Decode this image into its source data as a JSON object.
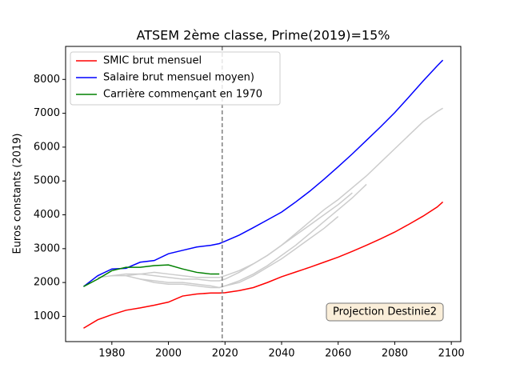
{
  "chart_data": {
    "type": "line",
    "title": "ATSEM 2ème classe, Prime(2019)=15%",
    "y_label": "Euros constants (2019)",
    "annotation": "Projection Destinie2",
    "vline": 2019,
    "legend": "upper left",
    "x": [
      1970,
      1975,
      1980,
      1985,
      1990,
      1995,
      2000,
      2005,
      2010,
      2015,
      2018,
      2020,
      2025,
      2030,
      2035,
      2040,
      2045,
      2050,
      2055,
      2060,
      2065,
      2070,
      2075,
      2080,
      2085,
      2090,
      2095,
      2097
    ],
    "series": [
      {
        "name": "SMIC brut mensuel",
        "color": "#ff0000",
        "values": [
          650,
          900,
          1050,
          1180,
          1250,
          1330,
          1420,
          1600,
          1660,
          1690,
          1690,
          1700,
          1760,
          1850,
          2000,
          2170,
          2310,
          2450,
          2600,
          2750,
          2920,
          3100,
          3290,
          3490,
          3720,
          3960,
          4230,
          4380
        ]
      },
      {
        "name": "Salaire brut mensuel moyen)",
        "color": "#0000ff",
        "values": [
          1880,
          2200,
          2400,
          2420,
          2600,
          2650,
          2850,
          2950,
          3050,
          3100,
          3150,
          3220,
          3400,
          3620,
          3850,
          4080,
          4380,
          4700,
          5050,
          5420,
          5800,
          6200,
          6600,
          7020,
          7480,
          7950,
          8400,
          8570
        ]
      },
      {
        "name": "Carrière commençant en 1970",
        "color": "#008000",
        "values": [
          1880,
          2100,
          2350,
          2450,
          2450,
          2500,
          2520,
          2400,
          2300,
          2250,
          2250,
          null,
          null,
          null,
          null,
          null,
          null,
          null,
          null,
          null,
          null,
          null,
          null,
          null,
          null,
          null,
          null,
          null
        ]
      },
      {
        "color": "#cccccc",
        "values": [
          null,
          null,
          2200,
          2250,
          2250,
          2300,
          2250,
          2200,
          2150,
          2150,
          2150,
          2200,
          2350,
          2550,
          2800,
          3100,
          3450,
          3800,
          4150,
          4450,
          4800,
          5150,
          5550,
          5950,
          6350,
          6750,
          7050,
          7150
        ]
      },
      {
        "color": "#cccccc",
        "values": [
          null,
          null,
          null,
          2200,
          2100,
          2050,
          2000,
          2000,
          1950,
          1900,
          1850,
          1900,
          2050,
          2250,
          2500,
          2800,
          3100,
          3450,
          3800,
          4150,
          4500,
          4900,
          null,
          null,
          null,
          null,
          null,
          null
        ]
      },
      {
        "color": "#cccccc",
        "values": [
          null,
          null,
          null,
          null,
          2100,
          2000,
          1950,
          1950,
          1900,
          1850,
          1850,
          1900,
          2000,
          2200,
          2450,
          2700,
          3000,
          3300,
          3600,
          3950,
          null,
          null,
          null,
          null,
          null,
          null,
          null,
          null
        ]
      },
      {
        "color": "#cccccc",
        "values": [
          null,
          2150,
          2200,
          2200,
          2250,
          2200,
          2150,
          2100,
          2100,
          2050,
          2050,
          2100,
          2300,
          2550,
          2800,
          3100,
          3400,
          3700,
          4000,
          4300,
          4650,
          null,
          null,
          null,
          null,
          null,
          null,
          null
        ]
      }
    ],
    "xlim": [
      1963.65,
      2103.35
    ],
    "ylim": [
      254,
      8976
    ],
    "xticks": [
      1980,
      2000,
      2020,
      2040,
      2060,
      2080,
      2100
    ],
    "yticks": [
      1000,
      2000,
      3000,
      4000,
      5000,
      6000,
      7000,
      8000
    ]
  }
}
